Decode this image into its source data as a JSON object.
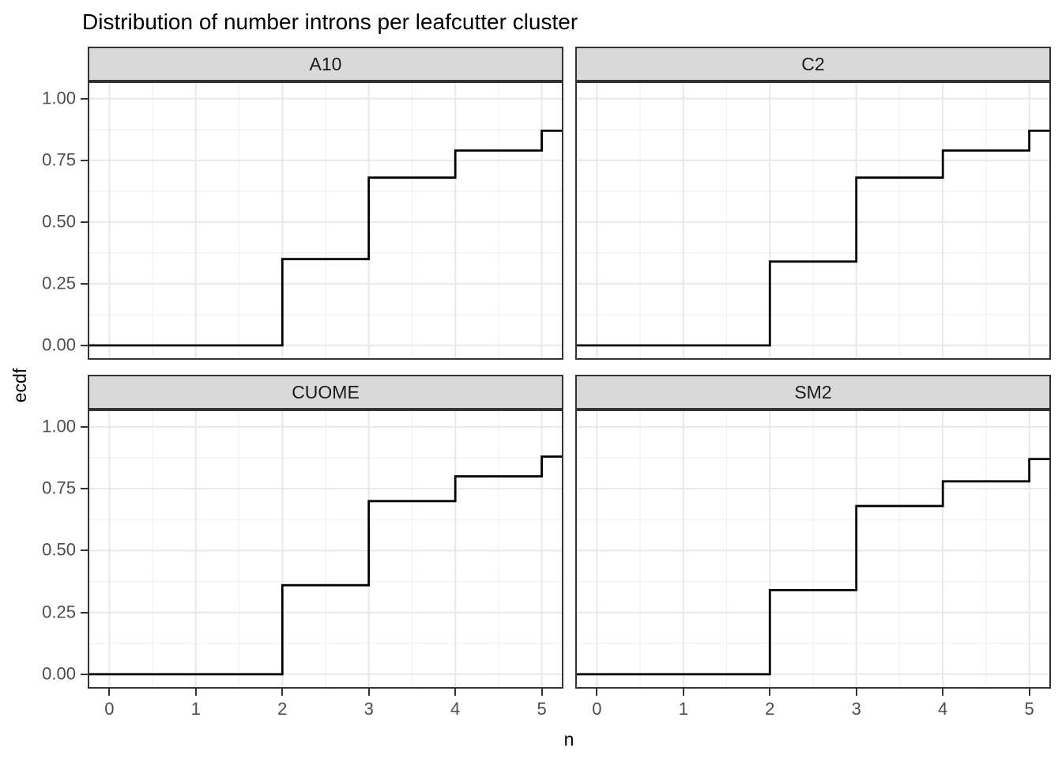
{
  "title": "Distribution of number introns per leafcutter cluster",
  "x_axis": {
    "label": "n",
    "tick_labels": [
      "0",
      "1",
      "2",
      "3",
      "4",
      "5"
    ],
    "tick_values": [
      0,
      1,
      2,
      3,
      4,
      5
    ]
  },
  "y_axis": {
    "label": "ecdf",
    "tick_labels": [
      "0.00",
      "0.25",
      "0.50",
      "0.75",
      "1.00"
    ],
    "tick_values": [
      0,
      0.25,
      0.5,
      0.75,
      1.0
    ]
  },
  "colors": {
    "background": "#ffffff",
    "panel_border": "#333333",
    "strip_fill": "#d9d9d9",
    "strip_border": "#333333",
    "grid_major": "#e8e8e8",
    "grid_minor": "#f1f1f1",
    "step_line": "#000000",
    "tick_mark": "#333333",
    "tick_label": "#4d4d4d",
    "title_text": "#000000"
  },
  "chart_data": {
    "type": "line",
    "subtype": "ecdf-step",
    "title": "Distribution of number introns per leafcutter cluster",
    "xlabel": "n",
    "ylabel": "ecdf",
    "xlim": [
      -0.25,
      5.25
    ],
    "ylim": [
      -0.058,
      1.07
    ],
    "grid": "major and minor, both axes",
    "legend": "none",
    "facet_layout": "2x2",
    "facets": [
      {
        "label": "A10",
        "step_x": [
          2,
          3,
          4,
          5
        ],
        "step_y": [
          0.35,
          0.68,
          0.79,
          0.87
        ]
      },
      {
        "label": "C2",
        "step_x": [
          2,
          3,
          4,
          5
        ],
        "step_y": [
          0.34,
          0.68,
          0.79,
          0.87
        ]
      },
      {
        "label": "CUOME",
        "step_x": [
          2,
          3,
          4,
          5
        ],
        "step_y": [
          0.36,
          0.7,
          0.8,
          0.88
        ]
      },
      {
        "label": "SM2",
        "step_x": [
          2,
          3,
          4,
          5
        ],
        "step_y": [
          0.34,
          0.68,
          0.78,
          0.87
        ]
      }
    ]
  }
}
